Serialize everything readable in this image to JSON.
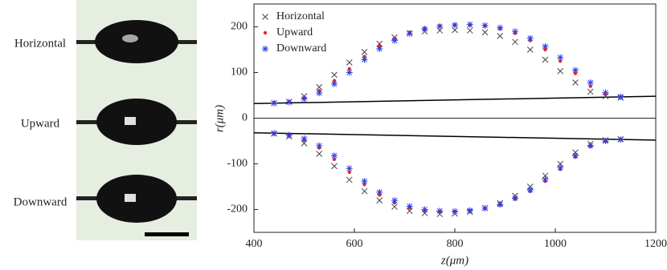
{
  "photo_labels": [
    "Horizontal",
    "Upward",
    "Downward"
  ],
  "chart_data": {
    "type": "scatter",
    "xlabel": "z(μm)",
    "ylabel": "r(μm)",
    "xlim": [
      400,
      1200
    ],
    "xticks": [
      400,
      600,
      800,
      1000,
      1200
    ],
    "ylim": [
      -250,
      250
    ],
    "yticks": [
      -200,
      -100,
      0,
      100,
      200
    ],
    "legend": "upper left",
    "lines": [
      {
        "color": "#000000",
        "x": [
          400,
          1200
        ],
        "values": [
          32,
          48
        ]
      },
      {
        "color": "#000000",
        "x": [
          400,
          1200
        ],
        "values": [
          -32,
          -48
        ]
      }
    ],
    "series": [
      {
        "name": "Horizontal",
        "color": "#444444",
        "marker": "x",
        "x": [
          440,
          470,
          500,
          530,
          560,
          590,
          620,
          650,
          680,
          710,
          740,
          770,
          800,
          830,
          860,
          890,
          920,
          950,
          980,
          1010,
          1040,
          1070,
          1100,
          1130,
          440,
          470,
          500,
          530,
          560,
          590,
          620,
          650,
          680,
          710,
          740,
          770,
          800,
          830,
          860,
          890,
          920,
          950,
          980,
          1010,
          1040,
          1070,
          1100,
          1130
        ],
        "values": [
          33,
          36,
          48,
          68,
          95,
          122,
          145,
          163,
          177,
          186,
          190,
          192,
          193,
          192,
          188,
          180,
          167,
          150,
          128,
          103,
          78,
          58,
          48,
          45,
          -34,
          -40,
          -55,
          -78,
          -105,
          -135,
          -160,
          -180,
          -194,
          -203,
          -208,
          -210,
          -209,
          -205,
          -197,
          -186,
          -170,
          -150,
          -126,
          -100,
          -75,
          -56,
          -48,
          -46
        ]
      },
      {
        "name": "Upward",
        "color": "#e8262a",
        "marker": "o",
        "x": [
          440,
          470,
          500,
          530,
          560,
          590,
          620,
          650,
          680,
          710,
          740,
          770,
          800,
          830,
          860,
          890,
          920,
          950,
          980,
          1010,
          1040,
          1070,
          1100,
          1130,
          440,
          470,
          500,
          530,
          560,
          590,
          620,
          650,
          680,
          710,
          740,
          770,
          800,
          830,
          860,
          890,
          920,
          950,
          980,
          1010,
          1040,
          1070,
          1100,
          1130
        ],
        "values": [
          34,
          36,
          45,
          60,
          82,
          108,
          135,
          158,
          175,
          188,
          197,
          202,
          204,
          204,
          202,
          196,
          186,
          170,
          150,
          125,
          98,
          70,
          52,
          46,
          -34,
          -38,
          -48,
          -65,
          -90,
          -118,
          -145,
          -168,
          -185,
          -196,
          -202,
          -205,
          -205,
          -203,
          -198,
          -190,
          -177,
          -160,
          -138,
          -112,
          -85,
          -62,
          -50,
          -46
        ]
      },
      {
        "name": "Downward",
        "color": "#2a3de8",
        "marker": "*",
        "x": [
          440,
          470,
          500,
          530,
          560,
          590,
          620,
          650,
          680,
          710,
          740,
          770,
          800,
          830,
          860,
          890,
          920,
          950,
          980,
          1010,
          1040,
          1070,
          1100,
          1130,
          440,
          470,
          500,
          530,
          560,
          590,
          620,
          650,
          680,
          710,
          740,
          770,
          800,
          830,
          860,
          890,
          920,
          950,
          980,
          1010,
          1040,
          1070,
          1100,
          1130
        ],
        "values": [
          33,
          35,
          42,
          55,
          75,
          100,
          128,
          152,
          170,
          185,
          195,
          201,
          204,
          205,
          203,
          198,
          190,
          175,
          157,
          133,
          105,
          78,
          56,
          47,
          -33,
          -37,
          -45,
          -60,
          -82,
          -110,
          -138,
          -162,
          -180,
          -193,
          -200,
          -203,
          -204,
          -202,
          -197,
          -189,
          -175,
          -157,
          -134,
          -108,
          -82,
          -60,
          -50,
          -47
        ]
      }
    ]
  }
}
